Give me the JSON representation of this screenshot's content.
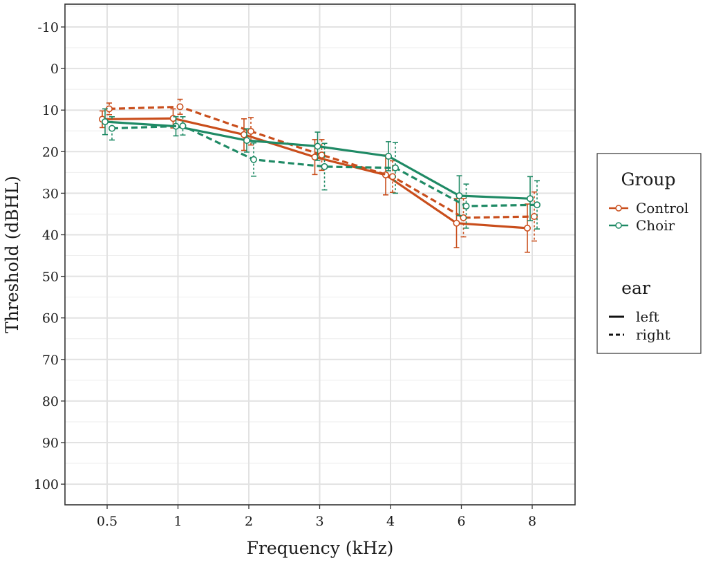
{
  "chart_data": {
    "type": "line",
    "xlabel": "Frequency (kHz)",
    "ylabel": "Threshold (dBHL)",
    "categories": [
      "0.5",
      "1",
      "2",
      "3",
      "4",
      "6",
      "8"
    ],
    "y_ticks": [
      "-10",
      "0",
      "10",
      "20",
      "30",
      "40",
      "50",
      "60",
      "70",
      "80",
      "90",
      "100"
    ],
    "ylim": [
      100,
      -15
    ],
    "y_reversed": true,
    "grid": true,
    "legend_position": "right",
    "legends": {
      "group": {
        "title": "Group",
        "items": [
          {
            "label": "Control",
            "color": "#c94e1c"
          },
          {
            "label": "Choir",
            "color": "#1f8a65"
          }
        ]
      },
      "ear": {
        "title": "ear",
        "items": [
          {
            "label": "left",
            "dash": "solid"
          },
          {
            "label": "right",
            "dash": "dashed"
          }
        ]
      }
    },
    "series": [
      {
        "group": "Control",
        "ear": "left",
        "color": "#c94e1c",
        "dash": "solid",
        "values": [
          12.2,
          12.0,
          15.9,
          21.3,
          25.6,
          37.2,
          38.4
        ],
        "error": [
          2.0,
          2.3,
          3.8,
          4.2,
          4.8,
          5.9,
          5.8
        ]
      },
      {
        "group": "Control",
        "ear": "right",
        "color": "#c94e1c",
        "dash": "dashed",
        "values": [
          9.7,
          9.2,
          15.1,
          20.8,
          26.0,
          35.9,
          35.6
        ],
        "error": [
          1.4,
          1.8,
          3.3,
          3.7,
          3.8,
          4.6,
          5.9
        ]
      },
      {
        "group": "Choir",
        "ear": "left",
        "color": "#1f8a65",
        "dash": "solid",
        "values": [
          12.8,
          13.9,
          17.3,
          18.7,
          21.1,
          30.6,
          31.3
        ],
        "error": [
          3.1,
          2.3,
          2.8,
          3.4,
          3.5,
          4.8,
          5.3
        ]
      },
      {
        "group": "Choir",
        "ear": "right",
        "color": "#1f8a65",
        "dash": "dashed",
        "values": [
          14.4,
          13.8,
          21.9,
          23.6,
          23.9,
          33.1,
          32.8
        ],
        "error": [
          2.8,
          2.2,
          4.0,
          5.6,
          6.1,
          5.3,
          5.8
        ]
      }
    ]
  }
}
